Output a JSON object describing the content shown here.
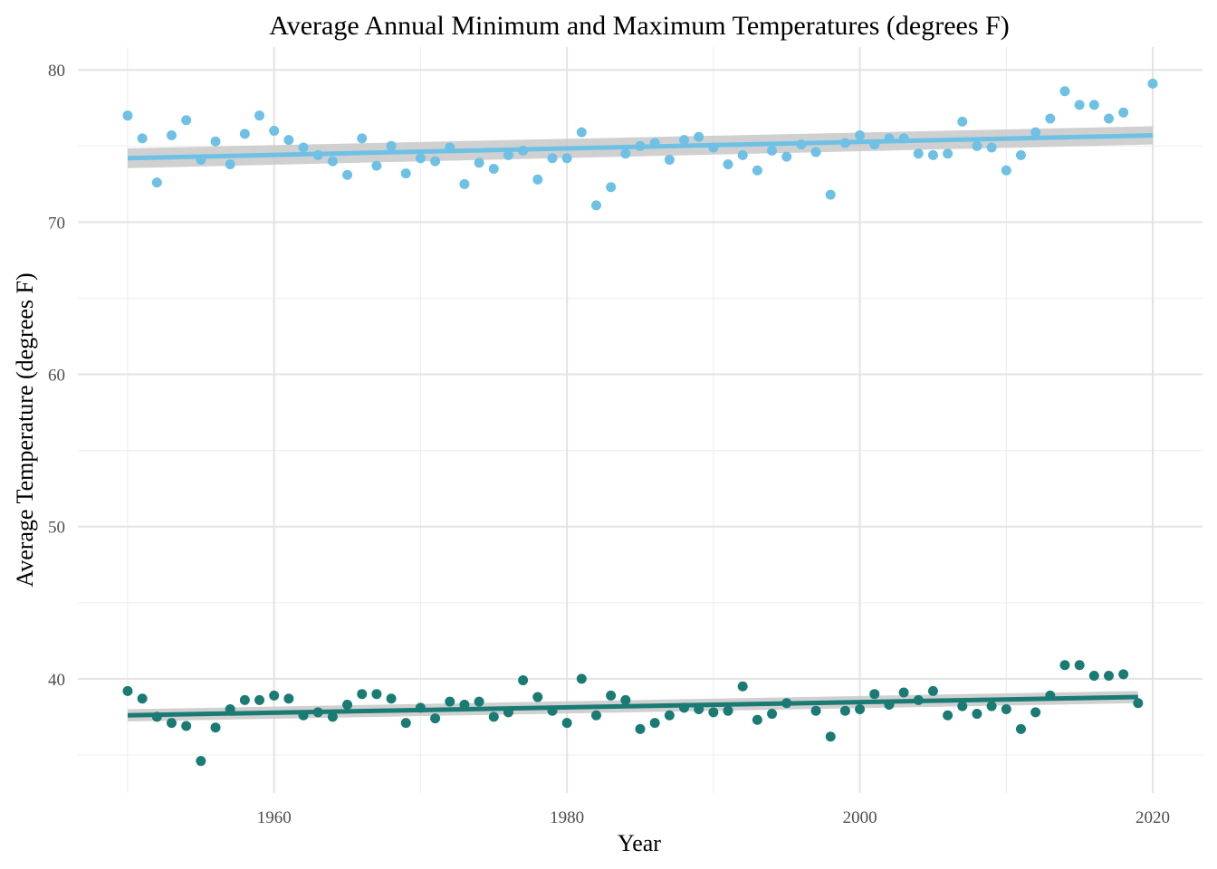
{
  "chart_data": {
    "type": "scatter",
    "title": "Average Annual Minimum and Maximum Temperatures (degrees F)",
    "xlabel": "Year",
    "ylabel": "Average Temperature (degrees F)",
    "xlim": [
      1946.6,
      2023.4
    ],
    "ylim": [
      32.5,
      81.5
    ],
    "x_ticks": [
      1960,
      1980,
      2000,
      2020
    ],
    "y_ticks": [
      40,
      50,
      60,
      70,
      80
    ],
    "grid": true,
    "legend": "none",
    "series": [
      {
        "color": "#6ec1e4",
        "x": [
          1950,
          1951,
          1952,
          1953,
          1954,
          1955,
          1956,
          1957,
          1958,
          1959,
          1960,
          1961,
          1962,
          1963,
          1964,
          1965,
          1966,
          1967,
          1968,
          1969,
          1970,
          1971,
          1972,
          1973,
          1974,
          1975,
          1976,
          1977,
          1978,
          1979,
          1980,
          1981,
          1982,
          1983,
          1984,
          1985,
          1986,
          1987,
          1988,
          1989,
          1990,
          1991,
          1992,
          1993,
          1994,
          1995,
          1996,
          1997,
          1998,
          1999,
          2000,
          2001,
          2002,
          2003,
          2004,
          2005,
          2006,
          2007,
          2008,
          2009,
          2010,
          2011,
          2012,
          2013,
          2014,
          2015,
          2016,
          2017,
          2018,
          2020
        ],
        "y": [
          77.0,
          75.5,
          72.6,
          75.7,
          76.7,
          74.1,
          75.3,
          73.8,
          75.8,
          77.0,
          76.0,
          75.4,
          74.9,
          74.4,
          74.0,
          73.1,
          75.5,
          73.7,
          75.0,
          73.2,
          74.2,
          74.0,
          74.9,
          72.5,
          73.9,
          73.5,
          74.4,
          74.7,
          72.8,
          74.2,
          74.2,
          75.9,
          71.1,
          72.3,
          74.5,
          75.0,
          75.2,
          74.1,
          75.4,
          75.6,
          74.9,
          73.8,
          74.4,
          73.4,
          74.7,
          74.3,
          75.1,
          74.6,
          71.8,
          75.2,
          75.7,
          75.1,
          75.5,
          75.5,
          74.5,
          74.4,
          74.5,
          76.6,
          75.0,
          74.9,
          73.4,
          74.4,
          75.9,
          76.8,
          78.6,
          77.7,
          77.7,
          76.8,
          77.2,
          79.1
        ],
        "trend": {
          "x": [
            1950,
            2020
          ],
          "y": [
            74.2,
            75.7
          ],
          "ci_halfwidth": [
            0.65,
            0.6
          ]
        }
      },
      {
        "color": "#1a7a74",
        "x": [
          1950,
          1951,
          1952,
          1953,
          1954,
          1955,
          1956,
          1957,
          1958,
          1959,
          1960,
          1961,
          1962,
          1963,
          1964,
          1965,
          1966,
          1967,
          1968,
          1969,
          1970,
          1971,
          1972,
          1973,
          1974,
          1975,
          1976,
          1977,
          1978,
          1979,
          1980,
          1981,
          1982,
          1983,
          1984,
          1985,
          1986,
          1987,
          1988,
          1989,
          1990,
          1991,
          1992,
          1993,
          1994,
          1995,
          1997,
          1998,
          1999,
          2000,
          2001,
          2002,
          2003,
          2004,
          2005,
          2006,
          2007,
          2008,
          2009,
          2010,
          2011,
          2012,
          2013,
          2014,
          2015,
          2016,
          2017,
          2018,
          2019
        ],
        "y": [
          39.2,
          38.7,
          37.5,
          37.1,
          36.9,
          34.6,
          36.8,
          38.0,
          38.6,
          38.6,
          38.9,
          38.7,
          37.6,
          37.8,
          37.5,
          38.3,
          39.0,
          39.0,
          38.7,
          37.1,
          38.1,
          37.4,
          38.5,
          38.3,
          38.5,
          37.5,
          37.8,
          39.9,
          38.8,
          37.9,
          37.1,
          40.0,
          37.6,
          38.9,
          38.6,
          36.7,
          37.1,
          37.6,
          38.1,
          38.0,
          37.8,
          37.9,
          39.5,
          37.3,
          37.7,
          38.4,
          37.9,
          36.2,
          37.9,
          38.0,
          39.0,
          38.3,
          39.1,
          38.6,
          39.2,
          37.6,
          38.2,
          37.7,
          38.2,
          38.0,
          36.7,
          37.8,
          38.9,
          40.9,
          40.9,
          40.2,
          40.2,
          40.3,
          38.4
        ],
        "trend": {
          "x": [
            1950,
            2019
          ],
          "y": [
            37.6,
            38.8
          ],
          "ci_halfwidth": [
            0.4,
            0.4
          ]
        }
      }
    ]
  }
}
